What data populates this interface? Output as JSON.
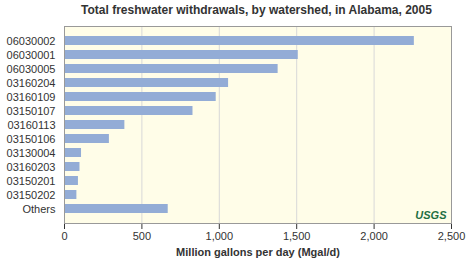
{
  "chart_data": {
    "type": "bar",
    "orientation": "horizontal",
    "title": "Total freshwater withdrawals, by watershed, in Alabama, 2005",
    "x_label": "Million gallons per day (Mgal/d)",
    "categories": [
      "06030002",
      "06030001",
      "06030005",
      "03160204",
      "03160109",
      "03150107",
      "03160113",
      "03150106",
      "03130004",
      "03160203",
      "03150201",
      "03150202",
      "Others"
    ],
    "values": [
      2260,
      1510,
      1380,
      1060,
      980,
      830,
      390,
      290,
      110,
      100,
      90,
      80,
      670
    ],
    "color": "#93acd6",
    "xlim": [
      0,
      2500
    ],
    "xticks": [
      0,
      500,
      {
        "value": 1000,
        "label": "1,000"
      },
      {
        "value": 1500,
        "label": "1,500"
      },
      {
        "value": 2000,
        "label": "2,000"
      },
      {
        "value": 2500,
        "label": "2,500"
      }
    ],
    "grid": true,
    "annotations": [
      "USGS"
    ]
  }
}
